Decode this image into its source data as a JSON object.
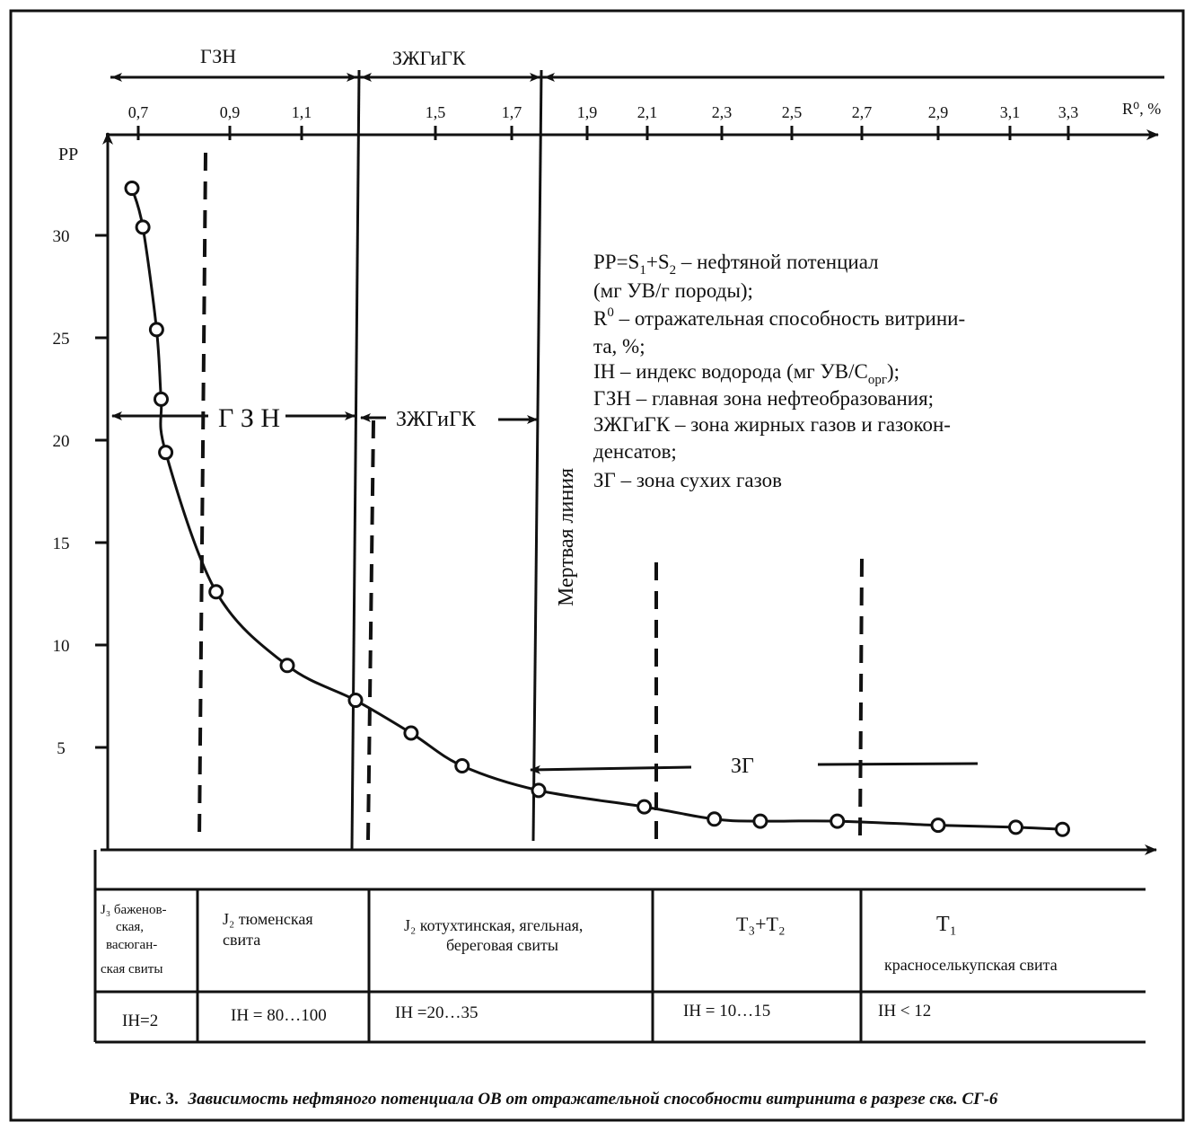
{
  "zones_top": {
    "gzn": "ГЗН",
    "zhgk": "ЗЖГиГК"
  },
  "zones_mid": {
    "gzn": "Г З Н",
    "zhgk": "ЗЖГиГК",
    "zg": "ЗГ"
  },
  "dead_line": "Мертвая линия",
  "legend": {
    "line1_a": "PP=S",
    "line1_sub1": "1",
    "line1_b": "+S",
    "line1_sub2": "2",
    "line1_c": " – нефтяной потенциал",
    "line2": "(мг УВ/г породы);",
    "line3_a": "R",
    "line3_sup": "0",
    "line3_b": " – отражательная способность витрини-",
    "line4": "та, %;",
    "line5_a": "IH – индекс водорода (мг УВ/С",
    "line5_sub": "орг",
    "line5_b": ");",
    "line6": "ГЗН – главная зона нефтеобразования;",
    "line7": "ЗЖГиГК – зона жирных газов и газокон-",
    "line8": "денсатов;",
    "line9": "ЗГ – зона сухих газов"
  },
  "table": {
    "col1": [
      "J₃ баженов-",
      "ская,",
      "васюган-",
      "ская свиты"
    ],
    "col1_ih": "IH=2",
    "col2": [
      "J₂ тюменская",
      "свита"
    ],
    "col2_ih": "IH = 80…100",
    "col3": [
      "J₂ котухтинская, ягельная,",
      "береговая свиты"
    ],
    "col3_ih": "IH =20…35",
    "col4": "T₃+T₂",
    "col4_ih": "IH = 10…15",
    "col5_top": "T₁",
    "col5_bottom": "красноселькупская свита",
    "col5_ih": "IH < 12"
  },
  "caption": {
    "prefix": "Рис. 3.",
    "text": "Зависимость нефтяного потенциала ОВ от отражательной способности витринита в разрезе скв. СГ-6"
  },
  "chart_data": {
    "type": "line",
    "xlabel": "R⁰, %",
    "ylabel": "PP",
    "x_ticks": [
      "0,7",
      "0,9",
      "1,1",
      "1,5",
      "1,7",
      "1,9",
      "2,1",
      "2,3",
      "2,5",
      "2,7",
      "2,9",
      "3,1",
      "3,3"
    ],
    "y_ticks": [
      "30",
      "25",
      "20",
      "15",
      "10",
      "5"
    ],
    "xlim": [
      0.6,
      3.6
    ],
    "ylim": [
      0,
      35
    ],
    "series": [
      {
        "x": [
          0.68,
          0.71,
          0.74,
          0.75,
          0.76,
          0.87,
          1.06,
          1.27,
          1.43,
          1.57,
          1.77,
          2.09,
          2.28,
          2.41,
          2.63,
          2.9,
          3.12,
          3.28
        ],
        "y": [
          32.3,
          30.4,
          25.4,
          22.0,
          19.4,
          12.6,
          9.0,
          7.3,
          5.7,
          4.1,
          2.9,
          2.1,
          1.5,
          1.4,
          1.4,
          1.2,
          1.1,
          1.0
        ]
      }
    ],
    "zone_boundaries": {
      "gzn_zhgk": 1.27,
      "dead_line": 1.77
    }
  }
}
